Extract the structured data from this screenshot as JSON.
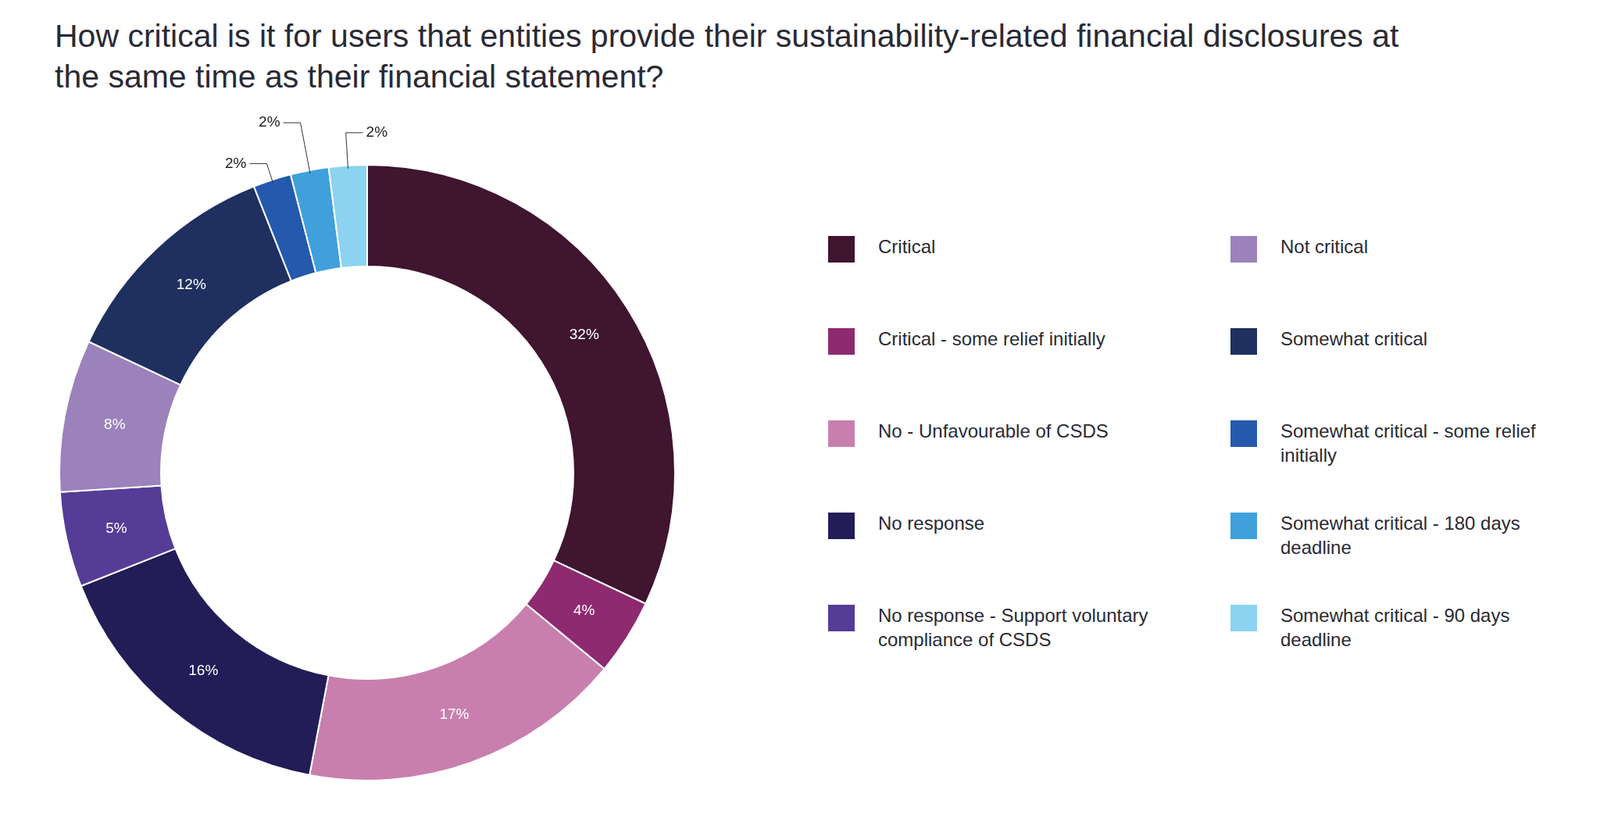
{
  "chart_data": {
    "type": "doughnut",
    "title": "How critical is it for users that entities provide their sustainability-related financial disclosures at the same time as their financial statement?",
    "categories": [
      "Critical",
      "Critical - some relief initially",
      "No - Unfavourable of CSDS",
      "No response",
      "No response - Support voluntary compliance of CSDS",
      "Not critical",
      "Somewhat critical",
      "Somewhat critical - some relief initially",
      "Somewhat critical - 180 days deadline",
      "Somewhat critical - 90 days deadline"
    ],
    "values": [
      32,
      4,
      17,
      16,
      5,
      8,
      12,
      2,
      2,
      2
    ],
    "value_labels": [
      "32%",
      "4%",
      "17%",
      "16%",
      "5%",
      "8%",
      "12%",
      "2%",
      "2%",
      "2%"
    ],
    "colors": [
      "#3f1530",
      "#8e2a70",
      "#c87fae",
      "#221c57",
      "#553c96",
      "#9b82bb",
      "#1f2f5f",
      "#2459ad",
      "#3fa0dc",
      "#8bd3f0"
    ],
    "data_labels": true,
    "legend": "right"
  }
}
